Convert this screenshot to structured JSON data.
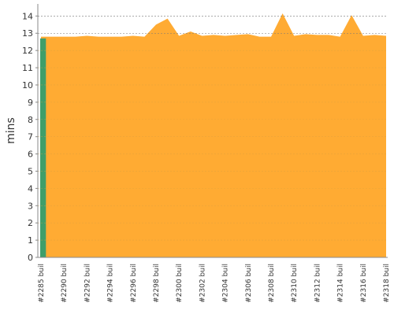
{
  "chart_data": {
    "type": "area",
    "y_label": "mins",
    "categories": [
      "#2285 buil",
      null,
      "#2290 buil",
      null,
      "#2292 buil",
      null,
      "#2294 buil",
      null,
      "#2296 buil",
      null,
      "#2298 buil",
      null,
      "#2300 buil",
      null,
      "#2302 buil",
      null,
      "#2304 buil",
      null,
      "#2306 buil",
      null,
      "#2308 buil",
      null,
      "#2310 buil",
      null,
      "#2312 buil",
      null,
      "#2314 buil",
      null,
      "#2316 buil",
      null,
      "#2318 buil"
    ],
    "series": [
      {
        "color": "#ffab33",
        "values": [
          12.8,
          12.8,
          12.8,
          12.8,
          12.85,
          12.8,
          12.8,
          12.8,
          12.85,
          12.8,
          13.5,
          13.85,
          12.85,
          13.1,
          12.85,
          12.9,
          12.85,
          12.9,
          12.95,
          12.8,
          12.8,
          14.15,
          12.85,
          12.95,
          12.9,
          12.9,
          12.8,
          14.05,
          12.85,
          12.9,
          12.85
        ]
      },
      {
        "color": "#3f9e6a",
        "values": [
          12.7,
          null,
          null,
          null,
          null,
          null,
          null,
          null,
          null,
          null,
          null,
          null,
          null,
          null,
          null,
          null,
          null,
          null,
          null,
          null,
          null,
          null,
          null,
          null,
          null,
          null,
          null,
          null,
          null,
          null,
          null
        ]
      }
    ],
    "ylim": [
      0,
      14.7
    ],
    "yticks": [
      0,
      1,
      2,
      3,
      4,
      5,
      6,
      7,
      8,
      9,
      10,
      11,
      12,
      13,
      14
    ],
    "grid": true
  }
}
